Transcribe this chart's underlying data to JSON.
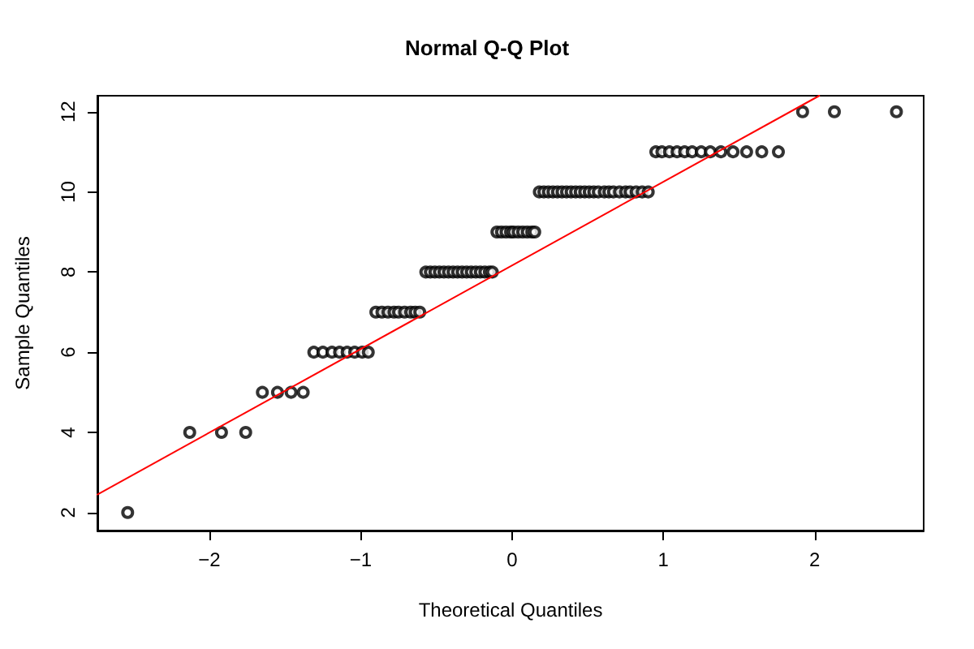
{
  "chart_data": {
    "type": "scatter",
    "title": "Normal Q-Q Plot",
    "xlabel": "Theoretical Quantiles",
    "ylabel": "Sample Quantiles",
    "xlim": [
      -2.74,
      2.72
    ],
    "ylim": [
      1.55,
      12.4
    ],
    "xticks": [
      -2,
      -1,
      0,
      1,
      2
    ],
    "yticks": [
      2,
      4,
      6,
      8,
      10,
      12
    ],
    "grid": false,
    "series": [
      {
        "marker": "circle",
        "color": "#000000",
        "x": [
          -2.54,
          -2.13,
          -1.92,
          -1.76,
          -1.65,
          -1.55,
          -1.46,
          -1.38,
          -1.31,
          -1.25,
          -1.19,
          -1.14,
          -1.09,
          -1.04,
          -0.99,
          -0.95,
          -0.9,
          -0.86,
          -0.82,
          -0.78,
          -0.75,
          -0.71,
          -0.67,
          -0.64,
          -0.61,
          -0.57,
          -0.54,
          -0.51,
          -0.48,
          -0.45,
          -0.42,
          -0.39,
          -0.36,
          -0.33,
          -0.3,
          -0.27,
          -0.24,
          -0.21,
          -0.18,
          -0.15,
          -0.13,
          -0.1,
          -0.07,
          -0.04,
          -0.01,
          0.01,
          0.04,
          0.07,
          0.1,
          0.13,
          0.15,
          0.18,
          0.21,
          0.24,
          0.27,
          0.3,
          0.33,
          0.36,
          0.39,
          0.42,
          0.45,
          0.48,
          0.51,
          0.54,
          0.57,
          0.61,
          0.64,
          0.67,
          0.71,
          0.75,
          0.78,
          0.82,
          0.86,
          0.9,
          0.95,
          0.99,
          1.04,
          1.09,
          1.14,
          1.19,
          1.25,
          1.31,
          1.38,
          1.46,
          1.55,
          1.65,
          1.76,
          1.92,
          2.13,
          2.54
        ],
        "values": [
          2,
          4,
          4,
          4,
          5,
          5,
          5,
          5,
          6,
          6,
          6,
          6,
          6,
          6,
          6,
          6,
          7,
          7,
          7,
          7,
          7,
          7,
          7,
          7,
          7,
          8,
          8,
          8,
          8,
          8,
          8,
          8,
          8,
          8,
          8,
          8,
          8,
          8,
          8,
          8,
          8,
          9,
          9,
          9,
          9,
          9,
          9,
          9,
          9,
          9,
          9,
          10,
          10,
          10,
          10,
          10,
          10,
          10,
          10,
          10,
          10,
          10,
          10,
          10,
          10,
          10,
          10,
          10,
          10,
          10,
          10,
          10,
          10,
          10,
          11,
          11,
          11,
          11,
          11,
          11,
          11,
          11,
          11,
          11,
          11,
          11,
          11,
          12,
          12,
          12
        ]
      },
      {
        "type": "line",
        "marker": "none",
        "line_style": "solid",
        "color": "#ff0000",
        "x": [
          -2.74,
          2.03
        ],
        "values": [
          2.45,
          12.4
        ]
      }
    ]
  }
}
